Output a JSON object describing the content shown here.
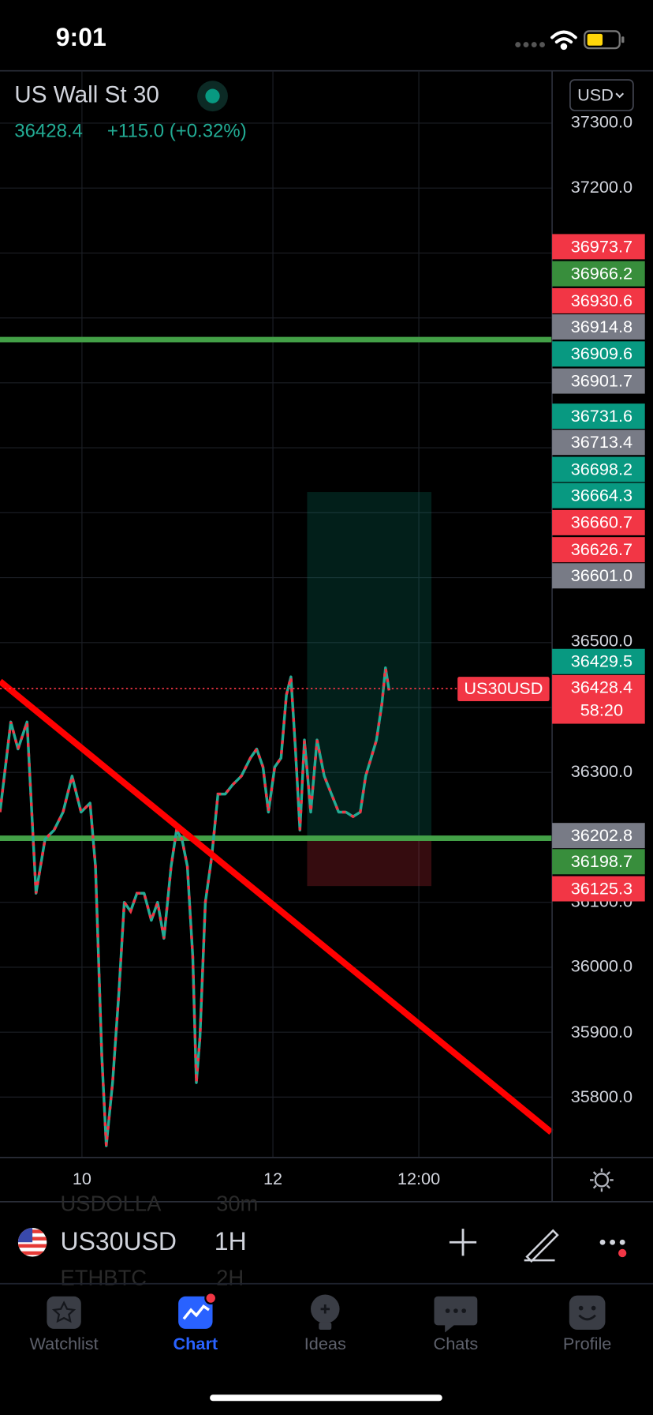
{
  "status_bar": {
    "time": "9:01"
  },
  "header": {
    "symbol_name": "US Wall St 30",
    "last_price": "36428.4",
    "change": "+115.0 (+0.32%)",
    "currency": "USD"
  },
  "price_axis": {
    "labels": [
      "37300.0",
      "37200.0",
      "36500.0",
      "36300.0",
      "36100.0",
      "36000.0",
      "35900.0",
      "35800.0"
    ]
  },
  "price_tags": [
    {
      "label": "36973.7",
      "color": "#f23645"
    },
    {
      "label": "36966.2",
      "color": "#388e3c"
    },
    {
      "label": "36930.6",
      "color": "#f23645"
    },
    {
      "label": "36914.8",
      "color": "#787b86"
    },
    {
      "label": "36909.6",
      "color": "#089981"
    },
    {
      "label": "36901.7",
      "color": "#787b86"
    },
    {
      "label": "36731.6",
      "color": "#089981"
    },
    {
      "label": "36713.4",
      "color": "#787b86"
    },
    {
      "label": "36698.2",
      "color": "#089981"
    },
    {
      "label": "36664.3",
      "color": "#089981"
    },
    {
      "label": "36660.7",
      "color": "#f23645"
    },
    {
      "label": "36626.7",
      "color": "#f23645"
    },
    {
      "label": "36601.0",
      "color": "#787b86"
    },
    {
      "label": "36429.5",
      "color": "#089981"
    },
    {
      "label": "36202.8",
      "color": "#787b86"
    },
    {
      "label": "36198.7",
      "color": "#388e3c"
    },
    {
      "label": "36125.3",
      "color": "#f23645"
    }
  ],
  "current_price_tag": {
    "symbol": "US30USD",
    "price": "36428.4",
    "countdown": "58:20",
    "color": "#f23645"
  },
  "time_axis": {
    "labels": [
      "10",
      "12",
      "12:00"
    ]
  },
  "toolbar": {
    "symbol": "US30USD",
    "interval": "1H",
    "watchlist_peek": [
      {
        "symbol": "USDOLLA",
        "interval": "30m"
      },
      {
        "symbol": "ETHBTC",
        "interval": "2H"
      }
    ]
  },
  "tabs": [
    {
      "label": "Watchlist"
    },
    {
      "label": "Chart",
      "active": true
    },
    {
      "label": "Ideas"
    },
    {
      "label": "Chats"
    },
    {
      "label": "Profile"
    }
  ]
}
